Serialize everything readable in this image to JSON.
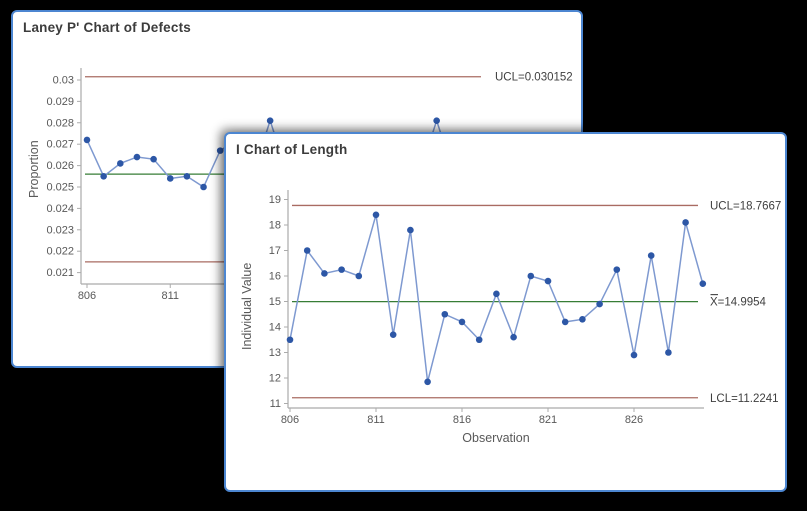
{
  "desktop": {
    "background": "#000000"
  },
  "colors": {
    "window_border": "#4C86D1",
    "window_bg": "#FFFFFF",
    "title_text": "#3C3C3C",
    "axis_text": "#595959",
    "axis_line": "#ABABAB",
    "series_line": "#7E99D0",
    "marker": "#2D57A6",
    "limit_line": "#A96B62",
    "center_line": "#377D36",
    "limit_label_text": "#404040"
  },
  "chart_data": [
    {
      "id": "laney",
      "type": "line",
      "title": "Laney P' Chart of Defects",
      "ylabel": "Proportion",
      "x": [
        806,
        807,
        808,
        809,
        810,
        811,
        812,
        813,
        814
      ],
      "values": [
        0.0272,
        0.0255,
        0.0261,
        0.0264,
        0.0263,
        0.0254,
        0.0255,
        0.025,
        0.0267
      ],
      "peek_points": {
        "x": [
          817,
          827
        ],
        "values": [
          0.0281,
          0.0281
        ]
      },
      "ucl": 0.030152,
      "ucl_label": "UCL=0.030152",
      "center": 0.0256,
      "lcl": 0.0215,
      "yticks": [
        0.03,
        0.029,
        0.028,
        0.027,
        0.026,
        0.025,
        0.024,
        0.023,
        0.022,
        0.021
      ],
      "xticks": [
        806,
        811
      ],
      "ylim": [
        0.0205,
        0.0305
      ],
      "grid": false,
      "legend": "none",
      "note": "partially covered by front window; only observations 806-814 and two high points near 817 and 827 are visible"
    },
    {
      "id": "ichart",
      "type": "line",
      "title": "I Chart of Length",
      "ylabel": "Individual Value",
      "xlabel": "Observation",
      "x": [
        806,
        807,
        808,
        809,
        810,
        811,
        812,
        813,
        814,
        815,
        816,
        817,
        818,
        819,
        820,
        821,
        822,
        823,
        824,
        825,
        826,
        827,
        828,
        829,
        830
      ],
      "values": [
        13.5,
        17.0,
        16.1,
        16.25,
        16.0,
        18.4,
        13.7,
        17.8,
        11.85,
        14.5,
        14.2,
        13.5,
        15.3,
        13.6,
        16.0,
        15.8,
        14.2,
        14.3,
        14.9,
        16.25,
        12.9,
        16.8,
        13.0,
        18.1,
        15.7
      ],
      "ucl": 18.7667,
      "ucl_label": "UCL=18.7667",
      "center": 14.9954,
      "center_label": "X̄=14.9954",
      "lcl": 11.2241,
      "lcl_label": "LCL=11.2241",
      "yticks": [
        19,
        18,
        17,
        16,
        15,
        14,
        13,
        12,
        11
      ],
      "xticks": [
        806,
        811,
        816,
        821,
        826
      ],
      "ylim": [
        10.8,
        19.4
      ],
      "xlim": [
        806,
        830
      ],
      "grid": false,
      "legend": "none"
    }
  ]
}
